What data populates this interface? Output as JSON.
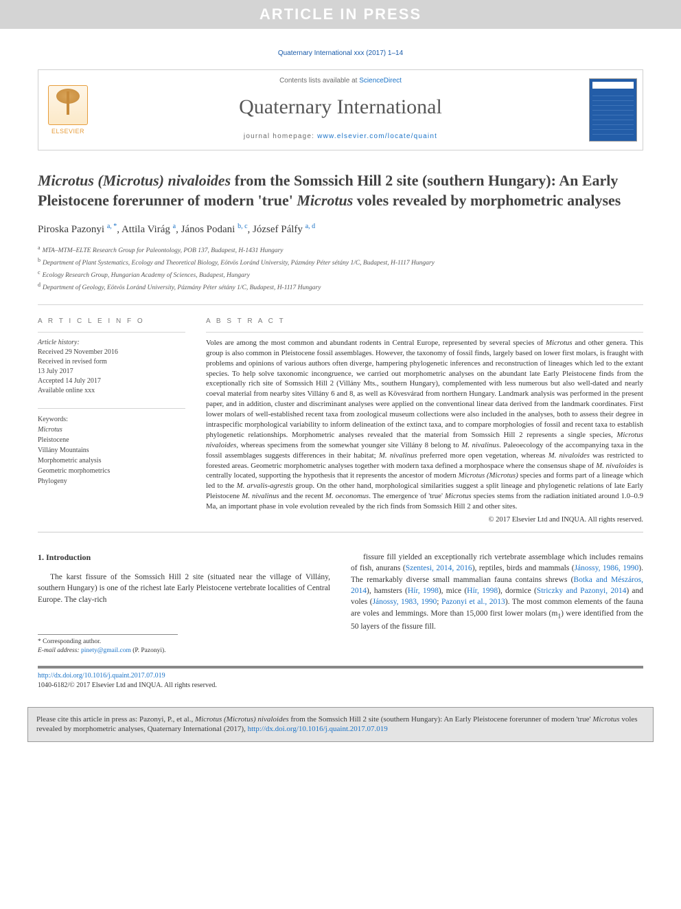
{
  "banner": "ARTICLE IN PRESS",
  "journal_ref": "Quaternary International xxx (2017) 1–14",
  "header": {
    "contents_prefix": "Contents lists available at ",
    "contents_link": "ScienceDirect",
    "journal_name": "Quaternary International",
    "homepage_prefix": "journal homepage: ",
    "homepage_link": "www.elsevier.com/locate/quaint",
    "elsevier_label": "ELSEVIER"
  },
  "title_parts": {
    "p1_italic": "Microtus (Microtus) nivaloides",
    "p2": " from the Somssich Hill 2 site (southern Hungary): An Early Pleistocene forerunner of modern 'true' ",
    "p3_italic": "Microtus",
    "p4": " voles revealed by morphometric analyses"
  },
  "authors": {
    "a1": {
      "name": "Piroska Pazonyi",
      "sup": "a, *"
    },
    "a2": {
      "name": "Attila Virág",
      "sup": "a"
    },
    "a3": {
      "name": "János Podani",
      "sup": "b, c"
    },
    "a4": {
      "name": "József Pálfy",
      "sup": "a, d"
    }
  },
  "affiliations": {
    "a": "MTA–MTM–ELTE Research Group for Paleontology, POB 137, Budapest, H-1431 Hungary",
    "b": "Department of Plant Systematics, Ecology and Theoretical Biology, Eötvös Loránd University, Pázmány Péter sétány 1/C, Budapest, H-1117 Hungary",
    "c": "Ecology Research Group, Hungarian Academy of Sciences, Budapest, Hungary",
    "d": "Department of Geology, Eötvös Loránd University, Pázmány Péter sétány 1/C, Budapest, H-1117 Hungary"
  },
  "article_info": {
    "heading": "A R T I C L E   I N F O",
    "history_label": "Article history:",
    "received": "Received 29 November 2016",
    "revised1": "Received in revised form",
    "revised2": "13 July 2017",
    "accepted": "Accepted 14 July 2017",
    "online": "Available online xxx",
    "keywords_label": "Keywords:",
    "keywords": [
      "Microtus",
      "Pleistocene",
      "Villány Mountains",
      "Morphometric analysis",
      "Geometric morphometrics",
      "Phylogeny"
    ]
  },
  "abstract": {
    "heading": "A B S T R A C T",
    "text_parts": [
      {
        "t": "Voles are among the most common and abundant rodents in Central Europe, represented by several species of "
      },
      {
        "i": "Microtus"
      },
      {
        "t": " and other genera. This group is also common in Pleistocene fossil assemblages. However, the taxonomy of fossil finds, largely based on lower first molars, is fraught with problems and opinions of various authors often diverge, hampering phylogenetic inferences and reconstruction of lineages which led to the extant species. To help solve taxonomic incongruence, we carried out morphometric analyses on the abundant late Early Pleistocene finds from the exceptionally rich site of Somssich Hill 2 (Villány Mts., southern Hungary), complemented with less numerous but also well-dated and nearly coeval material from nearby sites Villány 6 and 8, as well as Kövesvárad from northern Hungary. Landmark analysis was performed in the present paper, and in addition, cluster and discriminant analyses were applied on the conventional linear data derived from the landmark coordinates. First lower molars of well-established recent taxa from zoological museum collections were also included in the analyses, both to assess their degree in intraspecific morphological variability to inform delineation of the extinct taxa, and to compare morphologies of fossil and recent taxa to establish phylogenetic relationships. Morphometric analyses revealed that the material from Somssich Hill 2 represents a single species, "
      },
      {
        "i": "Microtus nivaloides"
      },
      {
        "t": ", whereas specimens from the somewhat younger site Villány 8 belong to "
      },
      {
        "i": "M. nivalinus"
      },
      {
        "t": ". Paleoecology of the accompanying taxa in the fossil assemblages suggests differences in their habitat; "
      },
      {
        "i": "M. nivalinus"
      },
      {
        "t": " preferred more open vegetation, whereas "
      },
      {
        "i": "M. nivaloides"
      },
      {
        "t": " was restricted to forested areas. Geometric morphometric analyses together with modern taxa defined a morphospace where the consensus shape of "
      },
      {
        "i": "M. nivaloides"
      },
      {
        "t": " is centrally located, supporting the hypothesis that it represents the ancestor of modern "
      },
      {
        "i": "Microtus (Microtus)"
      },
      {
        "t": " species and forms part of a lineage which led to the "
      },
      {
        "i": "M. arvalis-agrestis"
      },
      {
        "t": " group. On the other hand, morphological similarities suggest a split lineage and phylogenetic relations of late Early Pleistocene "
      },
      {
        "i": "M. nivalinus"
      },
      {
        "t": " and the recent "
      },
      {
        "i": "M. oeconomus"
      },
      {
        "t": ". The emergence of 'true' "
      },
      {
        "i": "Microtus"
      },
      {
        "t": " species stems from the radiation initiated around 1.0–0.9 Ma, an important phase in vole evolution revealed by the rich finds from Somssich Hill 2 and other sites."
      }
    ],
    "copyright": "© 2017 Elsevier Ltd and INQUA. All rights reserved."
  },
  "body": {
    "section_heading": "1. Introduction",
    "left_para": "The karst fissure of the Somssich Hill 2 site (situated near the village of Villány, southern Hungary) is one of the richest late Early Pleistocene vertebrate localities of Central Europe. The clay-rich",
    "right_parts": [
      {
        "t": "fissure fill yielded an exceptionally rich vertebrate assemblage which includes remains of fish, anurans ("
      },
      {
        "l": "Szentesi, 2014, 2016"
      },
      {
        "t": "), reptiles, birds and mammals ("
      },
      {
        "l": "Jánossy, 1986, 1990"
      },
      {
        "t": "). The remarkably diverse small mammalian fauna contains shrews ("
      },
      {
        "l": "Botka and Mészáros, 2014"
      },
      {
        "t": "), hamsters ("
      },
      {
        "l": "Hír, 1998"
      },
      {
        "t": "), mice ("
      },
      {
        "l": "Hír, 1998"
      },
      {
        "t": "), dormice ("
      },
      {
        "l": "Striczky and Pazonyi, 2014"
      },
      {
        "t": ") and voles ("
      },
      {
        "l": "Jánossy, 1983, 1990"
      },
      {
        "t": "; "
      },
      {
        "l": "Pazonyi et al., 2013"
      },
      {
        "t": "). The most common elements of the fauna are voles and lemmings. More than 15,000 first lower molars (m"
      },
      {
        "sub": "1"
      },
      {
        "t": ") were identified from the 50 layers of the fissure fill."
      }
    ]
  },
  "corr": {
    "star": "* Corresponding author.",
    "email_label": "E-mail address:",
    "email": "pinety@gmail.com",
    "email_tail": "(P. Pazonyi)."
  },
  "doi_footer": {
    "doi_link": "http://dx.doi.org/10.1016/j.quaint.2017.07.019",
    "issn_line": "1040-6182/© 2017 Elsevier Ltd and INQUA. All rights reserved."
  },
  "cite_box": {
    "prefix": "Please cite this article in press as: Pazonyi, P., et al., ",
    "italic": "Microtus (Microtus) nivaloides",
    "mid": " from the Somssich Hill 2 site (southern Hungary): An Early Pleistocene forerunner of modern 'true' ",
    "italic2": "Microtus",
    "tail": " voles revealed by morphometric analyses, Quaternary International (2017), ",
    "link": "http://dx.doi.org/10.1016/j.quaint.2017.07.019"
  },
  "colors": {
    "banner_bg": "#d4d4d4",
    "banner_fg": "#ffffff",
    "link": "#1b73c7",
    "journal_ref": "#185aa9",
    "elsevier_orange": "#e69c3a",
    "cover_blue": "#235da8",
    "cite_bg": "#e4e4e4"
  }
}
